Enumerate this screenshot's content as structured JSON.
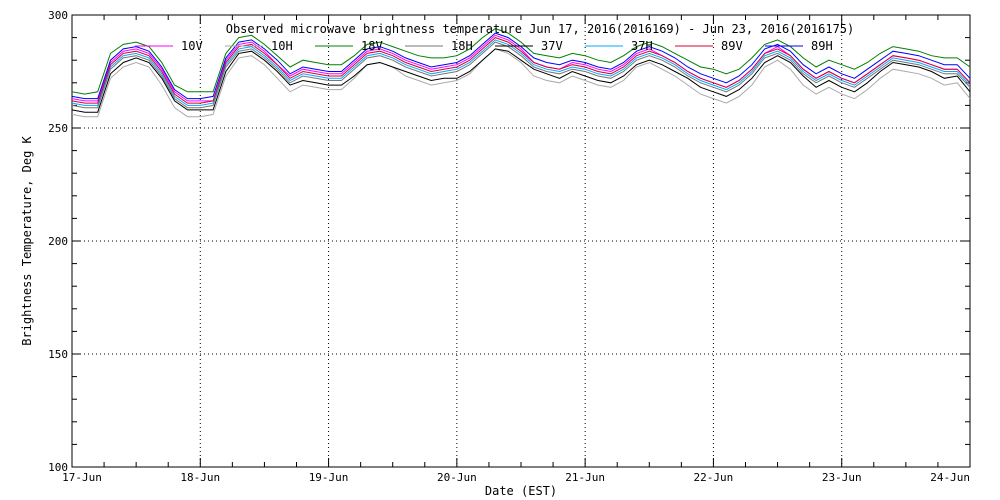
{
  "chart_data": {
    "type": "line",
    "title": "Observed microwave brightness temperature Jun 17, 2016(2016169) - Jun 23, 2016(2016175)",
    "xlabel": "Date (EST)",
    "ylabel": "Brightness Temperature, Deg K",
    "ylim": [
      100,
      300
    ],
    "yticks": [
      100,
      150,
      200,
      250,
      300
    ],
    "xlim": [
      0,
      7
    ],
    "xtick_labels": [
      "17-Jun",
      "18-Jun",
      "19-Jun",
      "20-Jun",
      "21-Jun",
      "22-Jun",
      "23-Jun",
      "24-Jun"
    ],
    "grid": true,
    "legend_position": "top",
    "x": [
      0.0,
      0.1,
      0.2,
      0.3,
      0.4,
      0.5,
      0.6,
      0.7,
      0.8,
      0.9,
      1.0,
      1.1,
      1.2,
      1.3,
      1.4,
      1.5,
      1.6,
      1.7,
      1.8,
      1.9,
      2.0,
      2.1,
      2.2,
      2.3,
      2.4,
      2.5,
      2.6,
      2.7,
      2.8,
      2.9,
      3.0,
      3.1,
      3.2,
      3.3,
      3.4,
      3.5,
      3.6,
      3.7,
      3.8,
      3.9,
      4.0,
      4.1,
      4.2,
      4.3,
      4.4,
      4.5,
      4.6,
      4.7,
      4.8,
      4.9,
      5.0,
      5.1,
      5.2,
      5.3,
      5.4,
      5.5,
      5.6,
      5.7,
      5.8,
      5.9,
      6.0,
      6.1,
      6.2,
      6.3,
      6.4,
      6.5,
      6.6,
      6.7,
      6.8,
      6.9,
      7.0
    ],
    "series": [
      {
        "name": "10V",
        "color": "#ff00ff",
        "values": [
          263,
          262,
          262,
          279,
          284,
          285,
          283,
          276,
          266,
          262,
          262,
          262,
          280,
          287,
          288,
          284,
          278,
          273,
          276,
          275,
          274,
          274,
          279,
          284,
          285,
          283,
          280,
          278,
          276,
          277,
          278,
          281,
          286,
          291,
          289,
          285,
          279,
          277,
          276,
          279,
          278,
          276,
          275,
          278,
          283,
          285,
          282,
          279,
          275,
          272,
          270,
          268,
          271,
          276,
          283,
          286,
          282,
          276,
          272,
          275,
          272,
          270,
          274,
          278,
          282,
          281,
          280,
          278,
          276,
          276,
          270
        ]
      },
      {
        "name": "10H",
        "color": "#aaaaaa",
        "values": [
          256,
          255,
          255,
          272,
          277,
          279,
          277,
          269,
          259,
          255,
          255,
          256,
          273,
          281,
          282,
          278,
          272,
          266,
          269,
          268,
          267,
          267,
          272,
          278,
          279,
          277,
          273,
          271,
          269,
          270,
          271,
          274,
          280,
          285,
          283,
          279,
          273,
          271,
          270,
          273,
          271,
          269,
          268,
          271,
          277,
          279,
          276,
          273,
          269,
          265,
          263,
          261,
          264,
          269,
          277,
          280,
          276,
          269,
          265,
          268,
          265,
          263,
          267,
          272,
          276,
          275,
          274,
          272,
          269,
          270,
          263
        ]
      },
      {
        "name": "18V",
        "color": "#008000",
        "values": [
          266,
          265,
          266,
          283,
          287,
          288,
          286,
          279,
          269,
          266,
          266,
          266,
          283,
          290,
          291,
          287,
          282,
          277,
          280,
          279,
          278,
          278,
          282,
          287,
          288,
          286,
          284,
          282,
          281,
          281,
          282,
          285,
          290,
          294,
          292,
          288,
          283,
          282,
          281,
          283,
          282,
          280,
          279,
          282,
          286,
          288,
          286,
          283,
          280,
          277,
          276,
          274,
          276,
          281,
          287,
          289,
          286,
          281,
          277,
          280,
          278,
          276,
          279,
          283,
          286,
          285,
          284,
          282,
          281,
          281,
          277
        ]
      },
      {
        "name": "18H",
        "color": "#777777",
        "values": [
          260,
          259,
          259,
          276,
          281,
          282,
          280,
          273,
          263,
          259,
          259,
          260,
          277,
          284,
          285,
          281,
          276,
          270,
          273,
          272,
          271,
          271,
          276,
          281,
          282,
          280,
          277,
          275,
          273,
          274,
          275,
          278,
          283,
          288,
          286,
          282,
          277,
          275,
          274,
          276,
          275,
          273,
          272,
          275,
          280,
          282,
          280,
          277,
          273,
          270,
          268,
          266,
          269,
          274,
          281,
          283,
          280,
          274,
          270,
          273,
          270,
          268,
          272,
          276,
          280,
          279,
          278,
          276,
          274,
          274,
          268
        ]
      },
      {
        "name": "37V",
        "color": "#000000",
        "values": [
          258,
          257,
          257,
          274,
          279,
          281,
          279,
          272,
          262,
          258,
          258,
          258,
          275,
          283,
          284,
          280,
          275,
          269,
          271,
          270,
          269,
          269,
          273,
          278,
          279,
          277,
          275,
          273,
          271,
          272,
          272,
          275,
          280,
          285,
          284,
          280,
          276,
          274,
          272,
          275,
          273,
          271,
          270,
          273,
          278,
          280,
          278,
          275,
          272,
          268,
          266,
          264,
          267,
          272,
          279,
          282,
          279,
          273,
          268,
          271,
          268,
          266,
          270,
          275,
          279,
          278,
          277,
          275,
          272,
          273,
          266
        ]
      },
      {
        "name": "37H",
        "color": "#00aaff",
        "values": [
          261,
          260,
          260,
          277,
          282,
          283,
          281,
          274,
          264,
          260,
          260,
          261,
          278,
          285,
          286,
          282,
          277,
          271,
          274,
          273,
          272,
          272,
          277,
          282,
          283,
          281,
          278,
          276,
          274,
          275,
          276,
          279,
          284,
          289,
          287,
          283,
          278,
          276,
          275,
          277,
          276,
          274,
          273,
          276,
          281,
          283,
          281,
          278,
          274,
          271,
          269,
          267,
          270,
          275,
          282,
          284,
          281,
          275,
          271,
          274,
          271,
          269,
          273,
          277,
          281,
          280,
          279,
          277,
          275,
          275,
          269
        ]
      },
      {
        "name": "89V",
        "color": "#dd0033",
        "values": [
          262,
          261,
          261,
          278,
          283,
          284,
          282,
          275,
          265,
          261,
          261,
          262,
          279,
          286,
          287,
          283,
          278,
          272,
          275,
          274,
          273,
          273,
          278,
          283,
          284,
          282,
          279,
          277,
          275,
          276,
          277,
          280,
          285,
          290,
          288,
          284,
          279,
          277,
          276,
          278,
          277,
          275,
          274,
          277,
          282,
          284,
          282,
          279,
          275,
          272,
          270,
          268,
          271,
          276,
          283,
          285,
          282,
          276,
          272,
          275,
          272,
          270,
          274,
          278,
          282,
          281,
          280,
          278,
          276,
          276,
          270
        ]
      },
      {
        "name": "89H",
        "color": "#0000ff",
        "values": [
          264,
          263,
          263,
          280,
          285,
          286,
          284,
          277,
          267,
          263,
          263,
          264,
          281,
          288,
          289,
          285,
          280,
          274,
          277,
          276,
          275,
          275,
          280,
          285,
          286,
          284,
          281,
          279,
          277,
          278,
          279,
          282,
          287,
          292,
          290,
          286,
          281,
          279,
          278,
          280,
          279,
          277,
          276,
          279,
          284,
          286,
          284,
          281,
          277,
          274,
          272,
          270,
          273,
          278,
          285,
          287,
          284,
          278,
          274,
          277,
          274,
          272,
          276,
          280,
          284,
          283,
          282,
          280,
          278,
          278,
          272
        ]
      }
    ]
  }
}
